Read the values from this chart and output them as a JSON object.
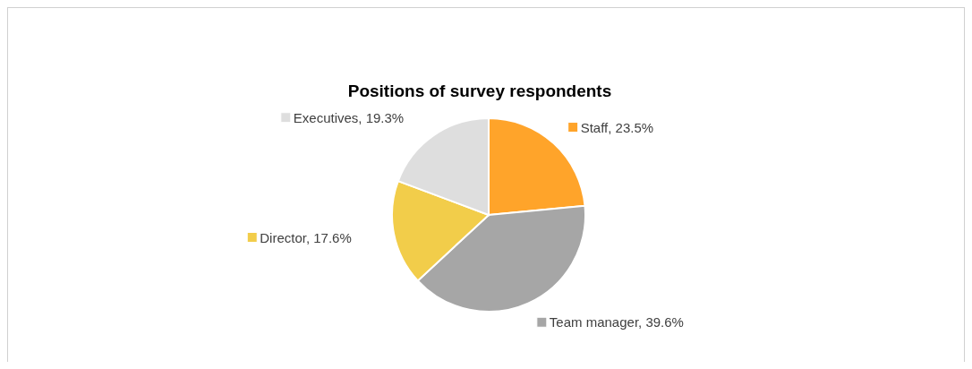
{
  "chart_data": {
    "type": "pie",
    "title": "Positions of survey respondents",
    "categories": [
      "Staff",
      "Team manager",
      "Director",
      "Executives"
    ],
    "values": [
      23.5,
      39.6,
      17.6,
      19.3
    ],
    "value_labels": [
      "23.5%",
      "39.6%",
      "17.6%",
      "19.3%"
    ],
    "colors": [
      "#ffa42a",
      "#a6a6a6",
      "#f2cd4a",
      "#dedede"
    ],
    "legend": "bottom left"
  }
}
